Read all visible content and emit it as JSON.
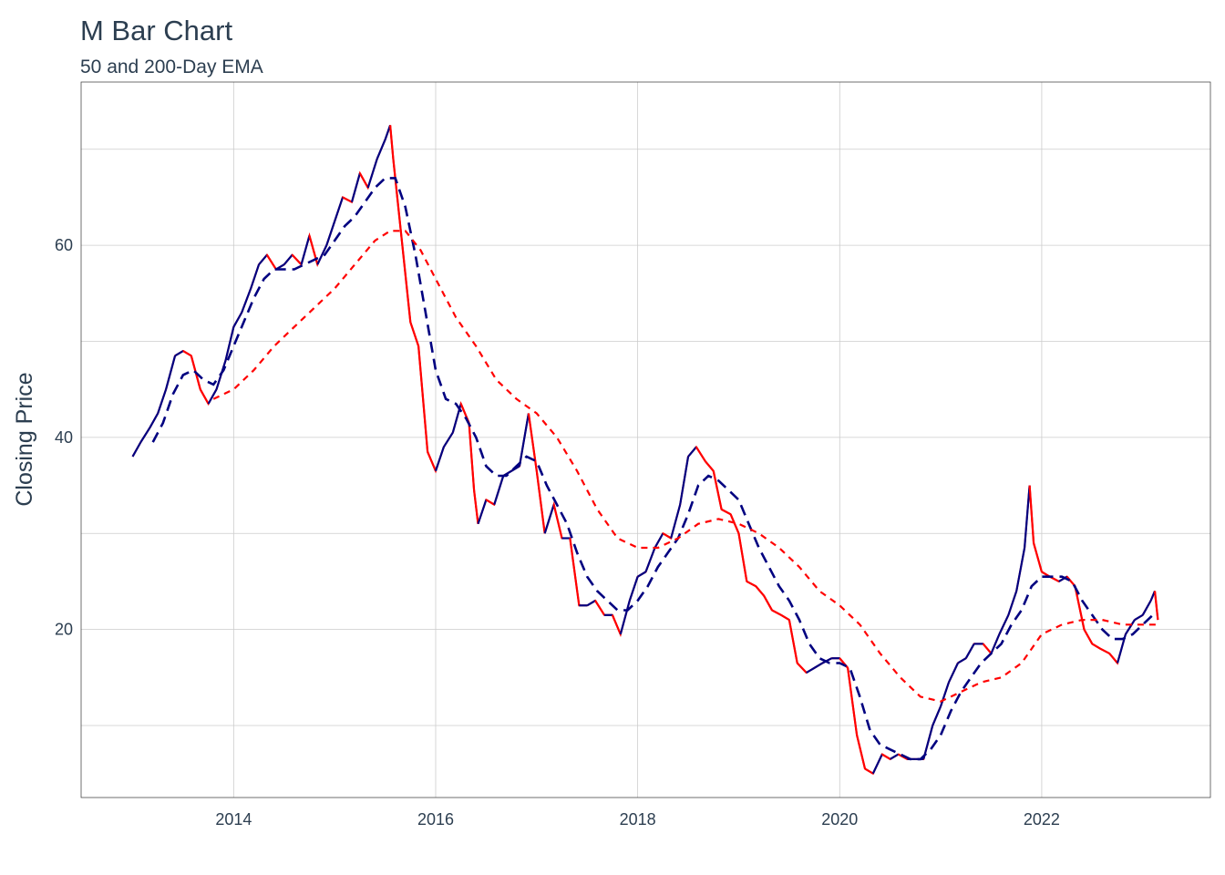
{
  "colors": {
    "price_up": "#000080",
    "price_down": "#FF0000",
    "ema_50": "#000080",
    "ema_200": "#FF0000",
    "text": "#2c3e50",
    "grid": "#cccccc"
  },
  "chart_data": {
    "type": "line",
    "title": "M Bar Chart",
    "subtitle": "50 and 200-Day EMA",
    "xlabel": "",
    "ylabel": "Closing Price",
    "xlim": [
      2012.49,
      2023.67
    ],
    "ylim": [
      2.5,
      77
    ],
    "x_ticks": [
      2014,
      2016,
      2018,
      2020,
      2022
    ],
    "x_tick_labels": [
      "2014",
      "2016",
      "2018",
      "2020",
      "2022"
    ],
    "y_ticks": [
      20,
      40,
      60
    ],
    "y_tick_labels": [
      "20",
      "40",
      "60"
    ],
    "y_minor_gridlines": [
      10,
      30,
      50,
      70
    ],
    "grid": true,
    "legend": "none",
    "series": [
      {
        "kind": "price",
        "style": "solid",
        "points": [
          [
            2013.0,
            38.0
          ],
          [
            2013.08,
            39.5
          ],
          [
            2013.17,
            41.0
          ],
          [
            2013.25,
            42.5
          ],
          [
            2013.33,
            45.0
          ],
          [
            2013.42,
            48.5
          ],
          [
            2013.5,
            49.0
          ],
          [
            2013.58,
            48.5
          ],
          [
            2013.67,
            45.0
          ],
          [
            2013.75,
            43.5
          ],
          [
            2013.83,
            45.0
          ],
          [
            2013.92,
            48.0
          ],
          [
            2014.0,
            51.5
          ],
          [
            2014.08,
            53.0
          ],
          [
            2014.17,
            55.5
          ],
          [
            2014.25,
            58.0
          ],
          [
            2014.33,
            59.0
          ],
          [
            2014.42,
            57.5
          ],
          [
            2014.5,
            58.0
          ],
          [
            2014.58,
            59.0
          ],
          [
            2014.67,
            58.0
          ],
          [
            2014.75,
            61.0
          ],
          [
            2014.83,
            58.0
          ],
          [
            2014.92,
            60.0
          ],
          [
            2015.0,
            62.5
          ],
          [
            2015.08,
            65.0
          ],
          [
            2015.17,
            64.5
          ],
          [
            2015.25,
            67.5
          ],
          [
            2015.33,
            66.0
          ],
          [
            2015.42,
            69.0
          ],
          [
            2015.5,
            71.0
          ],
          [
            2015.55,
            72.5
          ],
          [
            2015.58,
            69.0
          ],
          [
            2015.67,
            60.0
          ],
          [
            2015.75,
            52.0
          ],
          [
            2015.83,
            49.5
          ],
          [
            2015.92,
            38.5
          ],
          [
            2016.0,
            36.5
          ],
          [
            2016.08,
            39.0
          ],
          [
            2016.17,
            40.5
          ],
          [
            2016.25,
            43.5
          ],
          [
            2016.33,
            41.5
          ],
          [
            2016.38,
            34.5
          ],
          [
            2016.42,
            31.0
          ],
          [
            2016.5,
            33.5
          ],
          [
            2016.58,
            33.0
          ],
          [
            2016.67,
            36.0
          ],
          [
            2016.75,
            36.5
          ],
          [
            2016.83,
            37.0
          ],
          [
            2016.92,
            42.5
          ],
          [
            2017.0,
            36.5
          ],
          [
            2017.08,
            30.0
          ],
          [
            2017.17,
            33.0
          ],
          [
            2017.25,
            29.5
          ],
          [
            2017.33,
            29.5
          ],
          [
            2017.42,
            22.5
          ],
          [
            2017.5,
            22.5
          ],
          [
            2017.58,
            23.0
          ],
          [
            2017.67,
            21.5
          ],
          [
            2017.75,
            21.5
          ],
          [
            2017.83,
            19.5
          ],
          [
            2017.92,
            23.0
          ],
          [
            2018.0,
            25.5
          ],
          [
            2018.08,
            26.0
          ],
          [
            2018.17,
            28.5
          ],
          [
            2018.25,
            30.0
          ],
          [
            2018.33,
            29.5
          ],
          [
            2018.42,
            33.0
          ],
          [
            2018.5,
            38.0
          ],
          [
            2018.58,
            39.0
          ],
          [
            2018.67,
            37.5
          ],
          [
            2018.75,
            36.5
          ],
          [
            2018.83,
            32.5
          ],
          [
            2018.92,
            32.0
          ],
          [
            2019.0,
            30.0
          ],
          [
            2019.08,
            25.0
          ],
          [
            2019.17,
            24.5
          ],
          [
            2019.25,
            23.5
          ],
          [
            2019.33,
            22.0
          ],
          [
            2019.42,
            21.5
          ],
          [
            2019.5,
            21.0
          ],
          [
            2019.58,
            16.5
          ],
          [
            2019.67,
            15.5
          ],
          [
            2019.75,
            16.0
          ],
          [
            2019.83,
            16.5
          ],
          [
            2019.92,
            17.0
          ],
          [
            2020.0,
            17.0
          ],
          [
            2020.08,
            16.0
          ],
          [
            2020.17,
            9.0
          ],
          [
            2020.25,
            5.5
          ],
          [
            2020.33,
            5.0
          ],
          [
            2020.42,
            7.0
          ],
          [
            2020.5,
            6.5
          ],
          [
            2020.58,
            7.0
          ],
          [
            2020.67,
            6.5
          ],
          [
            2020.75,
            6.5
          ],
          [
            2020.83,
            6.5
          ],
          [
            2020.92,
            10.0
          ],
          [
            2021.0,
            12.0
          ],
          [
            2021.08,
            14.5
          ],
          [
            2021.17,
            16.5
          ],
          [
            2021.25,
            17.0
          ],
          [
            2021.33,
            18.5
          ],
          [
            2021.42,
            18.5
          ],
          [
            2021.5,
            17.5
          ],
          [
            2021.58,
            19.5
          ],
          [
            2021.67,
            21.5
          ],
          [
            2021.75,
            24.0
          ],
          [
            2021.83,
            28.5
          ],
          [
            2021.88,
            35.0
          ],
          [
            2021.92,
            29.0
          ],
          [
            2022.0,
            26.0
          ],
          [
            2022.08,
            25.5
          ],
          [
            2022.17,
            25.0
          ],
          [
            2022.25,
            25.5
          ],
          [
            2022.33,
            24.5
          ],
          [
            2022.42,
            20.0
          ],
          [
            2022.5,
            18.5
          ],
          [
            2022.58,
            18.0
          ],
          [
            2022.67,
            17.5
          ],
          [
            2022.75,
            16.5
          ],
          [
            2022.83,
            19.5
          ],
          [
            2022.92,
            21.0
          ],
          [
            2023.0,
            21.5
          ],
          [
            2023.08,
            23.0
          ],
          [
            2023.12,
            24.0
          ],
          [
            2023.15,
            21.0
          ]
        ]
      },
      {
        "kind": "ema_50",
        "style": "dashed",
        "points": [
          [
            2013.2,
            39.5
          ],
          [
            2013.3,
            41.5
          ],
          [
            2013.4,
            44.5
          ],
          [
            2013.5,
            46.5
          ],
          [
            2013.6,
            47.0
          ],
          [
            2013.7,
            46.0
          ],
          [
            2013.8,
            45.5
          ],
          [
            2013.9,
            47.0
          ],
          [
            2014.0,
            49.5
          ],
          [
            2014.1,
            52.0
          ],
          [
            2014.2,
            54.5
          ],
          [
            2014.3,
            56.5
          ],
          [
            2014.4,
            57.5
          ],
          [
            2014.5,
            57.5
          ],
          [
            2014.6,
            57.5
          ],
          [
            2014.7,
            58.0
          ],
          [
            2014.8,
            58.5
          ],
          [
            2014.9,
            59.0
          ],
          [
            2015.0,
            60.5
          ],
          [
            2015.1,
            62.0
          ],
          [
            2015.2,
            63.0
          ],
          [
            2015.3,
            64.5
          ],
          [
            2015.4,
            66.0
          ],
          [
            2015.5,
            67.0
          ],
          [
            2015.6,
            67.0
          ],
          [
            2015.7,
            64.0
          ],
          [
            2015.8,
            59.0
          ],
          [
            2015.9,
            53.0
          ],
          [
            2016.0,
            47.0
          ],
          [
            2016.1,
            44.0
          ],
          [
            2016.2,
            43.5
          ],
          [
            2016.3,
            42.0
          ],
          [
            2016.4,
            40.0
          ],
          [
            2016.5,
            37.0
          ],
          [
            2016.6,
            36.0
          ],
          [
            2016.7,
            36.0
          ],
          [
            2016.8,
            37.0
          ],
          [
            2016.9,
            38.0
          ],
          [
            2017.0,
            37.5
          ],
          [
            2017.1,
            35.0
          ],
          [
            2017.2,
            33.0
          ],
          [
            2017.3,
            31.0
          ],
          [
            2017.4,
            28.0
          ],
          [
            2017.5,
            25.5
          ],
          [
            2017.6,
            24.0
          ],
          [
            2017.7,
            23.0
          ],
          [
            2017.8,
            22.0
          ],
          [
            2017.9,
            22.0
          ],
          [
            2018.0,
            23.0
          ],
          [
            2018.1,
            24.5
          ],
          [
            2018.2,
            26.5
          ],
          [
            2018.3,
            28.0
          ],
          [
            2018.4,
            29.5
          ],
          [
            2018.5,
            32.0
          ],
          [
            2018.6,
            35.0
          ],
          [
            2018.7,
            36.0
          ],
          [
            2018.8,
            35.5
          ],
          [
            2018.9,
            34.5
          ],
          [
            2019.0,
            33.5
          ],
          [
            2019.1,
            31.0
          ],
          [
            2019.2,
            28.5
          ],
          [
            2019.3,
            26.5
          ],
          [
            2019.4,
            24.5
          ],
          [
            2019.5,
            23.0
          ],
          [
            2019.6,
            21.0
          ],
          [
            2019.7,
            18.5
          ],
          [
            2019.8,
            17.0
          ],
          [
            2019.9,
            16.5
          ],
          [
            2020.0,
            16.5
          ],
          [
            2020.1,
            16.0
          ],
          [
            2020.2,
            13.0
          ],
          [
            2020.3,
            9.5
          ],
          [
            2020.4,
            8.0
          ],
          [
            2020.5,
            7.5
          ],
          [
            2020.6,
            7.0
          ],
          [
            2020.7,
            6.5
          ],
          [
            2020.8,
            6.5
          ],
          [
            2020.9,
            7.5
          ],
          [
            2021.0,
            9.0
          ],
          [
            2021.1,
            11.5
          ],
          [
            2021.2,
            13.5
          ],
          [
            2021.3,
            15.0
          ],
          [
            2021.4,
            16.5
          ],
          [
            2021.5,
            17.5
          ],
          [
            2021.6,
            18.5
          ],
          [
            2021.7,
            20.5
          ],
          [
            2021.8,
            22.0
          ],
          [
            2021.9,
            24.5
          ],
          [
            2022.0,
            25.5
          ],
          [
            2022.1,
            25.5
          ],
          [
            2022.2,
            25.5
          ],
          [
            2022.3,
            25.0
          ],
          [
            2022.4,
            23.0
          ],
          [
            2022.5,
            21.5
          ],
          [
            2022.6,
            20.0
          ],
          [
            2022.7,
            19.0
          ],
          [
            2022.8,
            19.0
          ],
          [
            2022.9,
            19.5
          ],
          [
            2023.0,
            20.5
          ],
          [
            2023.1,
            21.5
          ],
          [
            2023.15,
            21.5
          ]
        ]
      },
      {
        "kind": "ema_200",
        "style": "dashed",
        "points": [
          [
            2013.8,
            44.0
          ],
          [
            2014.0,
            45.0
          ],
          [
            2014.2,
            47.0
          ],
          [
            2014.4,
            49.5
          ],
          [
            2014.6,
            51.5
          ],
          [
            2014.8,
            53.5
          ],
          [
            2015.0,
            55.5
          ],
          [
            2015.2,
            58.0
          ],
          [
            2015.4,
            60.5
          ],
          [
            2015.55,
            61.5
          ],
          [
            2015.7,
            61.5
          ],
          [
            2015.85,
            59.5
          ],
          [
            2016.0,
            56.5
          ],
          [
            2016.2,
            52.5
          ],
          [
            2016.4,
            49.5
          ],
          [
            2016.6,
            46.0
          ],
          [
            2016.8,
            44.0
          ],
          [
            2017.0,
            42.5
          ],
          [
            2017.2,
            40.0
          ],
          [
            2017.4,
            36.5
          ],
          [
            2017.6,
            32.5
          ],
          [
            2017.8,
            29.5
          ],
          [
            2018.0,
            28.5
          ],
          [
            2018.2,
            28.5
          ],
          [
            2018.4,
            29.5
          ],
          [
            2018.6,
            31.0
          ],
          [
            2018.8,
            31.5
          ],
          [
            2019.0,
            31.0
          ],
          [
            2019.2,
            30.0
          ],
          [
            2019.4,
            28.5
          ],
          [
            2019.6,
            26.5
          ],
          [
            2019.8,
            24.0
          ],
          [
            2020.0,
            22.5
          ],
          [
            2020.2,
            20.5
          ],
          [
            2020.4,
            17.5
          ],
          [
            2020.6,
            15.0
          ],
          [
            2020.8,
            13.0
          ],
          [
            2021.0,
            12.5
          ],
          [
            2021.2,
            13.5
          ],
          [
            2021.4,
            14.5
          ],
          [
            2021.6,
            15.0
          ],
          [
            2021.8,
            16.5
          ],
          [
            2022.0,
            19.5
          ],
          [
            2022.2,
            20.5
          ],
          [
            2022.4,
            21.0
          ],
          [
            2022.6,
            21.0
          ],
          [
            2022.8,
            20.5
          ],
          [
            2023.0,
            20.5
          ],
          [
            2023.15,
            20.5
          ]
        ]
      }
    ]
  }
}
